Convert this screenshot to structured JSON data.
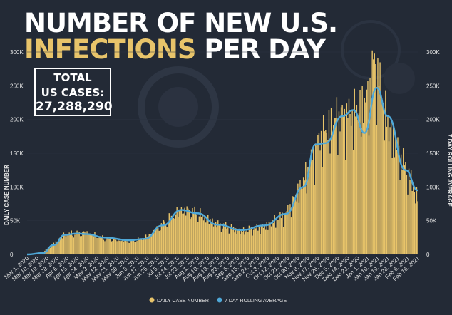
{
  "header": {
    "title_line1": "NUMBER OF NEW U.S.",
    "title_line2_highlight": "INFECTIONS",
    "title_line2_rest": " PER DAY"
  },
  "total_box": {
    "label_line1": "TOTAL",
    "label_line2": "US CASES:",
    "value": "27,288,290"
  },
  "colors": {
    "background": "#232a36",
    "bars": "#e8c46a",
    "rolling_line": "#4fa8d8",
    "title_highlight": "#e8c46a",
    "text": "#ffffff"
  },
  "chart_data": {
    "type": "bar",
    "title": "NUMBER OF NEW U.S. INFECTIONS PER DAY",
    "ylabel": "DAILY CASE NUMBER",
    "ylabel_right": "7 DAY ROLLING AVERAGE",
    "ylim": [
      0,
      300000
    ],
    "yticks": [
      0,
      50000,
      100000,
      150000,
      200000,
      250000,
      300000
    ],
    "ytick_labels": [
      "0",
      "50K",
      "100K",
      "150K",
      "200K",
      "250K",
      "300K"
    ],
    "x_start": "2020-03-01",
    "x_end": "2021-02-16",
    "legend": [
      "DAILY CASE NUMBER",
      "7 DAY ROLLING AVERAGE"
    ],
    "legend_position": "bottom",
    "series": [
      {
        "name": "DAILY CASE NUMBER",
        "kind": "bar",
        "anchors": [
          [
            "2020-03-01",
            0
          ],
          [
            "2020-03-15",
            3000
          ],
          [
            "2020-03-25",
            16000
          ],
          [
            "2020-04-04",
            30000
          ],
          [
            "2020-04-24",
            33000
          ],
          [
            "2020-05-10",
            24000
          ],
          [
            "2020-06-01",
            20000
          ],
          [
            "2020-06-15",
            25000
          ],
          [
            "2020-07-01",
            45000
          ],
          [
            "2020-07-18",
            68000
          ],
          [
            "2020-08-01",
            62000
          ],
          [
            "2020-08-20",
            45000
          ],
          [
            "2020-09-10",
            35000
          ],
          [
            "2020-10-01",
            42000
          ],
          [
            "2020-10-20",
            60000
          ],
          [
            "2020-11-05",
            110000
          ],
          [
            "2020-11-20",
            175000
          ],
          [
            "2020-12-05",
            205000
          ],
          [
            "2020-12-20",
            210000
          ],
          [
            "2021-01-02",
            235000
          ],
          [
            "2021-01-08",
            292000
          ],
          [
            "2021-01-20",
            195000
          ],
          [
            "2021-02-05",
            130000
          ],
          [
            "2021-02-16",
            85000
          ]
        ]
      },
      {
        "name": "7 DAY ROLLING AVERAGE",
        "kind": "line",
        "points": [
          [
            "2020-03-01",
            0
          ],
          [
            "2020-03-15",
            2000
          ],
          [
            "2020-03-25",
            14000
          ],
          [
            "2020-04-04",
            29000
          ],
          [
            "2020-04-15",
            31000
          ],
          [
            "2020-04-24",
            30000
          ],
          [
            "2020-05-10",
            25000
          ],
          [
            "2020-06-01",
            21000
          ],
          [
            "2020-06-15",
            23000
          ],
          [
            "2020-07-01",
            43000
          ],
          [
            "2020-07-18",
            66000
          ],
          [
            "2020-08-01",
            61000
          ],
          [
            "2020-08-20",
            44000
          ],
          [
            "2020-09-10",
            36000
          ],
          [
            "2020-10-01",
            43000
          ],
          [
            "2020-10-20",
            60000
          ],
          [
            "2020-11-05",
            100000
          ],
          [
            "2020-11-16",
            163000
          ],
          [
            "2020-11-25",
            165000
          ],
          [
            "2020-12-10",
            205000
          ],
          [
            "2020-12-20",
            214000
          ],
          [
            "2020-12-30",
            180000
          ],
          [
            "2021-01-10",
            247000
          ],
          [
            "2021-01-20",
            205000
          ],
          [
            "2021-02-05",
            125000
          ],
          [
            "2021-02-16",
            95000
          ]
        ]
      }
    ],
    "x_tick_labels": [
      "Mar 1, 2020",
      "Mar 10, 2020",
      "Mar 19, 2020",
      "Mar 28, 2020",
      "Apr 6, 2020",
      "Apr 15, 2020",
      "Apr 24, 2020",
      "May 3, 2020",
      "May 12, 2020",
      "May 21, 2020",
      "May 30, 2020",
      "Jun 8, 2020",
      "Jun 17, 2020",
      "Jun 26, 2020",
      "Jul 5, 2020",
      "Jul 14, 2020",
      "Jul 23, 2020",
      "Aug 1, 2020",
      "Aug 10, 2020",
      "Aug 19, 2020",
      "Aug 28, 2020",
      "Sep 6, 2020",
      "Sep 15, 2020",
      "Sep 24, 2020",
      "Oct 3, 2020",
      "Oct 12, 2020",
      "Oct 21, 2020",
      "Oct 30, 2020",
      "Nov 8, 2020",
      "Nov 17, 2020",
      "Nov 26, 2020",
      "Dec 5, 2020",
      "Dec 14, 2020",
      "Dec 23, 2020",
      "Jan 1, 2021",
      "Jan 10, 2021",
      "Jan 19, 2021",
      "Jan 28, 2021",
      "Feb 6, 2021",
      "Feb 16, 2021"
    ]
  }
}
